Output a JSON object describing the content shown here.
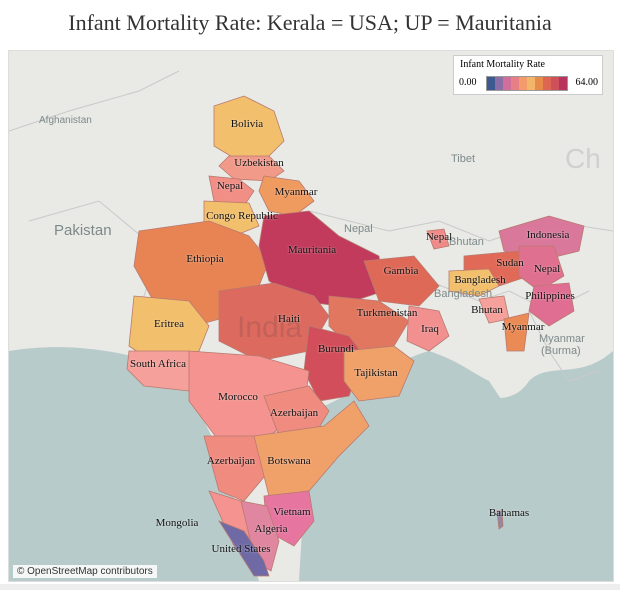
{
  "title": "Infant Mortality Rate: Kerala = USA; UP = Mauritania",
  "legend": {
    "title": "Infant Mortality Rate",
    "min_label": "0.00",
    "max_label": "64.00",
    "colors": [
      "#3d5a8f",
      "#8b6ea5",
      "#d06f99",
      "#e77f86",
      "#f39b6b",
      "#f2b56a",
      "#e88a4a",
      "#dd6650",
      "#cf4f5a",
      "#b8335d"
    ]
  },
  "basemap_labels": {
    "afghanistan": "Afghanistan",
    "pakistan": "Pakistan",
    "tibet": "Tibet",
    "nepal": "Nepal",
    "bhutan": "Bhutan",
    "bangladesh": "Bangladesh",
    "myanmar": "Myanmar",
    "burma": "(Burma)",
    "india": "India",
    "china_fragment": "Ch"
  },
  "regions": [
    {
      "label": "Bolivia",
      "color": "#f2bf6c"
    },
    {
      "label": "Uzbekistan",
      "color": "#f29a8a"
    },
    {
      "label": "Nepal",
      "color": "#f18e86"
    },
    {
      "label": "Myanmar",
      "color": "#ef9a5e"
    },
    {
      "label": "Congo Republic",
      "color": "#f2bf6c"
    },
    {
      "label": "Ethiopia",
      "color": "#e88453"
    },
    {
      "label": "Mauritania",
      "color": "#c23a5c"
    },
    {
      "label": "Gambia",
      "color": "#df6957"
    },
    {
      "label": "Nepal",
      "color": "#f08a88"
    },
    {
      "label": "Indonesia",
      "color": "#d9789b"
    },
    {
      "label": "Sudan",
      "color": "#e06a57"
    },
    {
      "label": "Nepal",
      "color": "#e0708f"
    },
    {
      "label": "Bangladesh",
      "color": "#f2bf6c"
    },
    {
      "label": "Philippines",
      "color": "#e06e93"
    },
    {
      "label": "Bhutan",
      "color": "#f5a09a"
    },
    {
      "label": "Myanmar",
      "color": "#ea8b55"
    },
    {
      "label": "Eritrea",
      "color": "#f2bf6c"
    },
    {
      "label": "Haiti",
      "color": "#dd6a5f"
    },
    {
      "label": "Turkmenistan",
      "color": "#e27760"
    },
    {
      "label": "Iraq",
      "color": "#f29090"
    },
    {
      "label": "Burundi",
      "color": "#d24e5a"
    },
    {
      "label": "Tajikistan",
      "color": "#f0a069"
    },
    {
      "label": "South Africa",
      "color": "#f5a09a"
    },
    {
      "label": "Morocco",
      "color": "#f4938f"
    },
    {
      "label": "Azerbaijan",
      "color": "#f08b80"
    },
    {
      "label": "Azerbaijan",
      "color": "#f08b80"
    },
    {
      "label": "Botswana",
      "color": "#f0a069"
    },
    {
      "label": "Vietnam",
      "color": "#e676a0"
    },
    {
      "label": "Algeria",
      "color": "#e086a0"
    },
    {
      "label": "Mongolia",
      "color": "#f4938f"
    },
    {
      "label": "United States",
      "color": "#6f6aa6"
    },
    {
      "label": "Bahamas",
      "color": "#8d8aa6"
    }
  ],
  "attribution": "© OpenStreetMap contributors"
}
